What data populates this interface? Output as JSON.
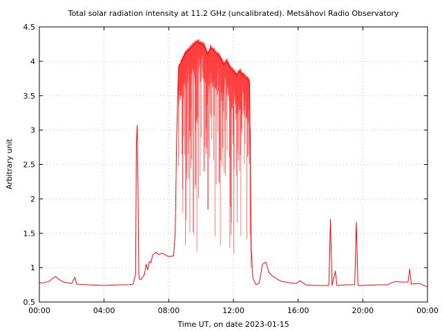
{
  "chart_data": {
    "type": "line",
    "title": "Total solar radiation intensity at 11.2 GHz (uncalibrated). Metsähovi Radio Observatory",
    "xlabel": "Time UT, on date 2023-01-15",
    "ylabel": "Arbitrary unit",
    "xlim": [
      0,
      24
    ],
    "ylim": [
      0.5,
      4.5
    ],
    "x_ticks": [
      0,
      4,
      8,
      12,
      16,
      20,
      24
    ],
    "x_tick_labels": [
      "00:00",
      "04:00",
      "08:00",
      "12:00",
      "16:00",
      "20:00",
      "00:00"
    ],
    "y_ticks": [
      0.5,
      1,
      1.5,
      2,
      2.5,
      3,
      3.5,
      4,
      4.5
    ],
    "y_tick_labels": [
      "0.5",
      "1",
      "1.5",
      "2",
      "2.5",
      "3",
      "3.5",
      "4",
      "4.5"
    ],
    "grid": true,
    "series": [
      {
        "color": "#ff0000",
        "x_units": "hours UT",
        "x": [
          0.0,
          0.3,
          0.6,
          0.8,
          1.0,
          1.2,
          1.5,
          2.0,
          2.2,
          2.3,
          3.0,
          4.0,
          5.0,
          5.5,
          5.8,
          5.95,
          6.0,
          6.05,
          6.1,
          6.15,
          6.2,
          6.3,
          6.5,
          6.6,
          6.7,
          6.8,
          6.9,
          7.0,
          7.2,
          7.4,
          7.6,
          8.0,
          8.3,
          8.4,
          8.5,
          8.6,
          8.8,
          9.0,
          9.2,
          9.4,
          9.6,
          9.8,
          10.0,
          10.2,
          10.4,
          10.6,
          10.8,
          11.0,
          11.2,
          11.4,
          11.6,
          11.8,
          12.0,
          12.2,
          12.4,
          12.6,
          12.8,
          13.0,
          13.05,
          13.1,
          13.2,
          13.4,
          13.6,
          13.8,
          14.0,
          14.2,
          14.4,
          14.8,
          15.0,
          15.5,
          15.9,
          16.1,
          16.5,
          17.0,
          17.5,
          17.9,
          18.0,
          18.1,
          18.3,
          18.4,
          18.5,
          19.0,
          19.5,
          19.6,
          19.7,
          20.0,
          21.0,
          21.5,
          22.0,
          22.5,
          22.8,
          22.9,
          23.0,
          23.5,
          24.0
        ],
        "y": [
          0.78,
          0.78,
          0.8,
          0.84,
          0.87,
          0.83,
          0.79,
          0.77,
          0.86,
          0.76,
          0.75,
          0.74,
          0.75,
          0.75,
          0.76,
          0.9,
          2.8,
          3.07,
          2.2,
          0.9,
          0.83,
          0.83,
          0.9,
          1.05,
          0.97,
          1.09,
          1.07,
          1.18,
          1.22,
          1.19,
          1.21,
          1.16,
          1.17,
          1.5,
          3.0,
          3.9,
          4.0,
          4.1,
          4.15,
          4.2,
          4.25,
          4.28,
          4.25,
          4.22,
          4.1,
          4.2,
          4.15,
          4.1,
          4.05,
          3.95,
          4.0,
          3.9,
          3.85,
          3.8,
          3.85,
          3.8,
          3.75,
          3.7,
          2.5,
          1.3,
          0.85,
          0.75,
          0.78,
          1.05,
          1.08,
          0.93,
          0.88,
          0.82,
          0.8,
          0.78,
          0.77,
          0.81,
          0.75,
          0.74,
          0.74,
          0.74,
          1.7,
          0.74,
          0.95,
          0.74,
          0.74,
          0.75,
          0.75,
          1.66,
          0.74,
          0.74,
          0.75,
          0.75,
          0.8,
          0.79,
          0.79,
          0.98,
          0.76,
          0.77,
          0.72
        ]
      }
    ]
  }
}
